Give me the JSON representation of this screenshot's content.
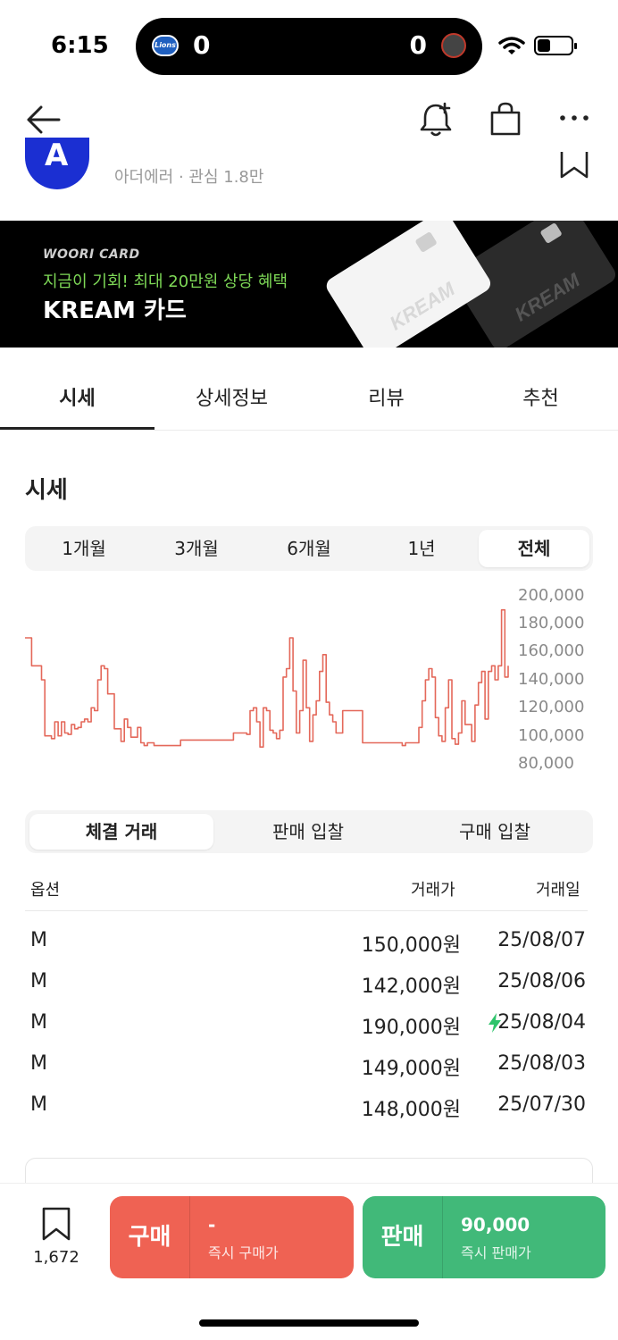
{
  "status": {
    "time": "6:15",
    "score_left": "0",
    "score_right": "0",
    "team_left_logo": "Lions"
  },
  "brand": {
    "logo_letter": "A",
    "meta": "아더에러 · 관심 1.8만"
  },
  "banner": {
    "line1": "WOORI CARD",
    "line2": "지금이 기회! 최대 20만원 상당 혜택",
    "line3": "KREAM 카드",
    "card_text": "KREAM"
  },
  "tabs": [
    "시세",
    "상세정보",
    "리뷰",
    "추천"
  ],
  "section_title": "시세",
  "periods": [
    "1개월",
    "3개월",
    "6개월",
    "1년",
    "전체"
  ],
  "chart_data": {
    "type": "line",
    "color": "#e4685a",
    "yticks": [
      "200,000",
      "180,000",
      "160,000",
      "140,000",
      "120,000",
      "100,000",
      "80,000"
    ],
    "ylim": [
      80000,
      200000
    ],
    "values": [
      170000,
      170000,
      150000,
      150000,
      150000,
      140000,
      100000,
      100000,
      98000,
      110000,
      100000,
      110000,
      102000,
      101000,
      108000,
      105000,
      106000,
      110000,
      112000,
      110000,
      120000,
      118000,
      140000,
      150000,
      148000,
      130000,
      130000,
      105000,
      105000,
      96000,
      112000,
      106000,
      99000,
      99000,
      106000,
      95000,
      93000,
      95000,
      95000,
      93000,
      93000,
      93000,
      93000,
      93000,
      93000,
      93000,
      93000,
      97000,
      97000,
      97000,
      97000,
      97000,
      97000,
      97000,
      97000,
      97000,
      97000,
      97000,
      97000,
      97000,
      97000,
      97000,
      97000,
      102000,
      102000,
      102000,
      102000,
      101000,
      118000,
      120000,
      110000,
      92000,
      120000,
      118000,
      104000,
      102000,
      98000,
      104000,
      142000,
      148000,
      170000,
      132000,
      102000,
      118000,
      154000,
      120000,
      96000,
      115000,
      125000,
      146000,
      158000,
      124000,
      115000,
      110000,
      102000,
      102000,
      118000,
      118000,
      118000,
      118000,
      118000,
      118000,
      95000,
      95000,
      95000,
      95000,
      95000,
      95000,
      95000,
      95000,
      95000,
      95000,
      95000,
      95000,
      93000,
      95000,
      95000,
      95000,
      95000,
      106000,
      125000,
      140000,
      148000,
      142000,
      113000,
      100000,
      96000,
      120000,
      140000,
      98000,
      94000,
      102000,
      125000,
      108000,
      108000,
      96000,
      122000,
      138000,
      146000,
      112000,
      146000,
      150000,
      140000,
      150000,
      190000,
      142000,
      150000
    ]
  },
  "trade_tabs": [
    "체결 거래",
    "판매 입찰",
    "구매 입찰"
  ],
  "table": {
    "headers": [
      "옵션",
      "거래가",
      "거래일"
    ],
    "rows": [
      {
        "option": "M",
        "price": "150,000원",
        "date": "25/08/07",
        "fast": false
      },
      {
        "option": "M",
        "price": "142,000원",
        "date": "25/08/06",
        "fast": false
      },
      {
        "option": "M",
        "price": "190,000원",
        "date": "25/08/04",
        "fast": true
      },
      {
        "option": "M",
        "price": "149,000원",
        "date": "25/08/03",
        "fast": false
      },
      {
        "option": "M",
        "price": "148,000원",
        "date": "25/07/30",
        "fast": false
      }
    ]
  },
  "bottom": {
    "saved_count": "1,672",
    "buy_label": "구매",
    "buy_value": "-",
    "buy_sub": "즉시 구매가",
    "sell_label": "판매",
    "sell_value": "90,000",
    "sell_sub": "즉시 판매가"
  }
}
